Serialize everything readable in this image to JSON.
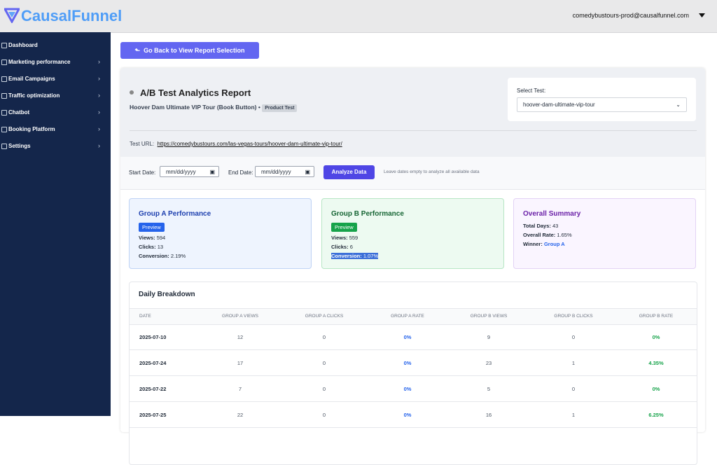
{
  "header": {
    "logo": "CausalFunnel",
    "user": "comedybustours-prod@causalfunnel.com"
  },
  "sidebar": {
    "items": [
      "Dashboard",
      "Marketing performance",
      "Email Campaigns",
      "Traffic optimization",
      "Chatbot",
      "Booking Platform",
      "Settings"
    ]
  },
  "back_button": "Go Back to View Report Selection",
  "report": {
    "title": "A/B Test Analytics Report",
    "subtitle": "Hoover Dam Ultimate VIP Tour (Book Button)",
    "badge": "Product Test",
    "select_label": "Select Test:",
    "select_value": "hoover-dam-ultimate-vip-tour",
    "test_url_label": "Test URL:",
    "test_url": "https://comedybustours.com/las-vegas-tours/hoover-dam-ultimate-vip-tour/"
  },
  "filters": {
    "start_label": "Start Date:",
    "start_placeholder": "mm/dd/yyyy",
    "end_label": "End Date:",
    "end_placeholder": "mm/dd/yyyy",
    "button": "Analyze Data",
    "hint": "Leave dates empty to analyze all available data"
  },
  "groups": [
    {
      "title": "Group A Performance",
      "badge": "Preview",
      "stats": [
        {
          "label": "Views:",
          "value": "594"
        },
        {
          "label": "Clicks:",
          "value": "13"
        },
        {
          "label": "Conversion:",
          "value": "2.19%"
        }
      ]
    },
    {
      "title": "Group B Performance",
      "badge": "Preview",
      "stats": [
        {
          "label": "Views:",
          "value": "559"
        },
        {
          "label": "Clicks:",
          "value": "6"
        },
        {
          "label": "Conversion:",
          "value": "1.07%"
        }
      ]
    }
  ],
  "summary": {
    "title": "Overall Summary",
    "stats": [
      {
        "label": "Total Days:",
        "value": "43"
      },
      {
        "label": "Overall Rate:",
        "value": "1.65%"
      },
      {
        "label": "Winner:",
        "value": "Group A"
      }
    ]
  },
  "table": {
    "title": "Daily Breakdown",
    "columns": [
      "DATE",
      "GROUP A VIEWS",
      "GROUP A CLICKS",
      "GROUP A RATE",
      "GROUP B VIEWS",
      "GROUP B CLICKS",
      "GROUP B RATE"
    ],
    "rows": [
      [
        "2025-07-10",
        "12",
        "0",
        "0%",
        "9",
        "0",
        "0%"
      ],
      [
        "2025-07-24",
        "17",
        "0",
        "0%",
        "23",
        "1",
        "4.35%"
      ],
      [
        "2025-07-22",
        "7",
        "0",
        "0%",
        "5",
        "0",
        "0%"
      ],
      [
        "2025-07-25",
        "22",
        "0",
        "0%",
        "16",
        "1",
        "6.25%"
      ]
    ]
  }
}
